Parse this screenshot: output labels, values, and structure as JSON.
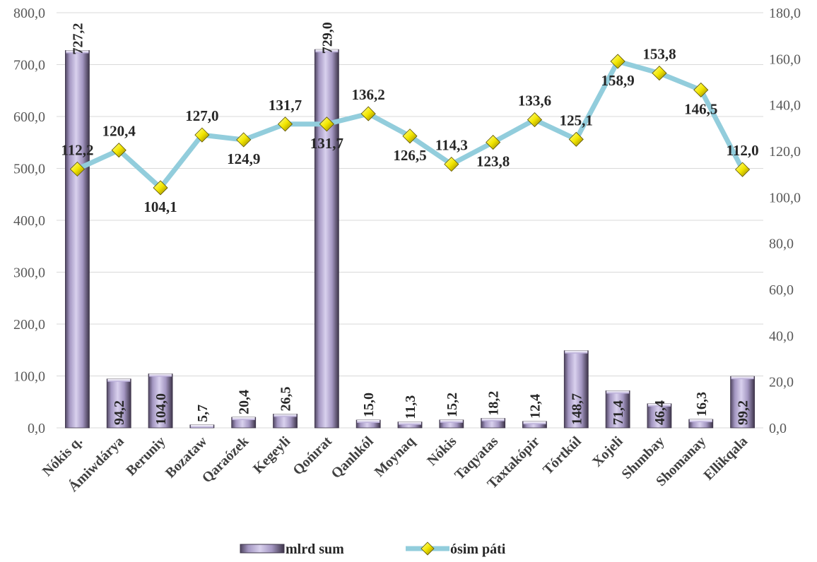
{
  "chart_data": {
    "type": "bar",
    "categories": [
      "Nókis q.",
      "Ámiwdárya",
      "Beruniy",
      "Bozataw",
      "Qaraózek",
      "Kegeyli",
      "Qońırat",
      "Qanlıkól",
      "Moynaq",
      "Nókis",
      "Taqyatas",
      "Taxtakópir",
      "Tórtkúl",
      "Xojeli",
      "Shımbay",
      "Shomanay",
      "Ellikqala"
    ],
    "series": [
      {
        "name": "mlrd sum",
        "type": "bar",
        "axis": "left",
        "values": [
          727.2,
          94.2,
          104.0,
          5.7,
          20.4,
          26.5,
          729.0,
          15.0,
          11.3,
          15.2,
          18.2,
          12.4,
          148.7,
          71.4,
          46.4,
          16.3,
          99.2
        ],
        "labels": [
          "727,2",
          "94,2",
          "104,0",
          "5,7",
          "20,4",
          "26,5",
          "729,0",
          "15,0",
          "11,3",
          "15,2",
          "18,2",
          "12,4",
          "148,7",
          "71,4",
          "46,4",
          "16,3",
          "99,2"
        ],
        "color": "#b4a7d6"
      },
      {
        "name": "ósim páti",
        "type": "line",
        "axis": "right",
        "values": [
          112.2,
          120.4,
          104.1,
          127.0,
          124.9,
          131.7,
          131.7,
          136.2,
          126.5,
          114.3,
          123.8,
          133.6,
          125.1,
          158.9,
          153.8,
          146.5,
          112.0
        ],
        "labels": [
          "112,2",
          "120,4",
          "104,1",
          "127,0",
          "124,9",
          "131,7",
          "131,7",
          "136,2",
          "126,5",
          "114,3",
          "123,8",
          "133,6",
          "125,1",
          "158,9",
          "153,8",
          "146,5",
          "112,0"
        ],
        "color": "#92cddc",
        "marker_color": "#ffff00"
      }
    ],
    "y_left": {
      "min": 0,
      "max": 800,
      "ticks": [
        "0,0",
        "100,0",
        "200,0",
        "300,0",
        "400,0",
        "500,0",
        "600,0",
        "700,0",
        "800,0"
      ]
    },
    "y_right": {
      "min": 0,
      "max": 180,
      "ticks": [
        "0,0",
        "20,0",
        "40,0",
        "60,0",
        "80,0",
        "100,0",
        "120,0",
        "140,0",
        "160,0",
        "180,0"
      ]
    },
    "grid": true,
    "legend_position": "bottom"
  }
}
